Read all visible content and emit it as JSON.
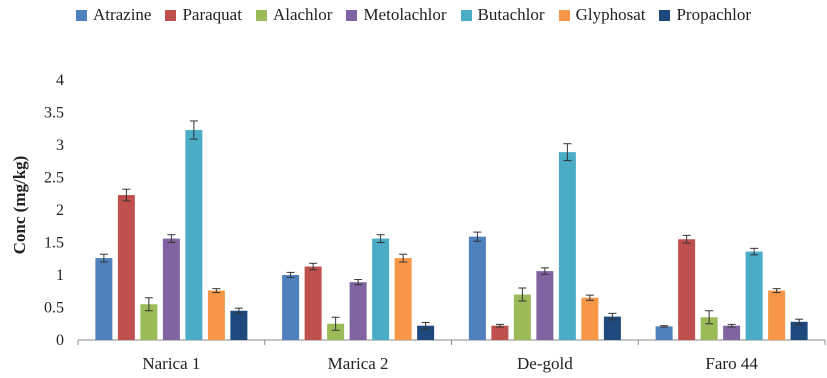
{
  "chart_data": {
    "type": "bar",
    "ylabel": "Conc (mg/kg)",
    "xlabel": "",
    "ylim": [
      0,
      4
    ],
    "yticks": [
      "0",
      "0.5",
      "1",
      "1.5",
      "2",
      "2.5",
      "3",
      "3.5",
      "4"
    ],
    "legend_position": "top",
    "grid": false,
    "error_bars": true,
    "categories": [
      "Narica 1",
      "Marica 2",
      "De-gold",
      "Faro 44"
    ],
    "series": [
      {
        "name": "Atrazine",
        "color": "#4f81bd",
        "values": [
          1.26,
          1.0,
          1.59,
          0.21
        ],
        "errors": [
          0.06,
          0.04,
          0.07,
          0.01
        ]
      },
      {
        "name": "Paraquat",
        "color": "#c0504d",
        "values": [
          2.23,
          1.13,
          0.22,
          1.55
        ],
        "errors": [
          0.09,
          0.05,
          0.02,
          0.06
        ]
      },
      {
        "name": "Alachlor",
        "color": "#9bbb59",
        "values": [
          0.55,
          0.25,
          0.7,
          0.35
        ],
        "errors": [
          0.1,
          0.1,
          0.1,
          0.1
        ]
      },
      {
        "name": "Metolachlor",
        "color": "#8064a2",
        "values": [
          1.56,
          0.89,
          1.06,
          0.22
        ],
        "errors": [
          0.06,
          0.04,
          0.05,
          0.02
        ]
      },
      {
        "name": "Butachlor",
        "color": "#4bacc6",
        "values": [
          3.23,
          1.56,
          2.89,
          1.36
        ],
        "errors": [
          0.14,
          0.06,
          0.13,
          0.05
        ]
      },
      {
        "name": "Glyphosat",
        "color": "#f79646",
        "values": [
          0.76,
          1.26,
          0.65,
          0.76
        ],
        "errors": [
          0.03,
          0.06,
          0.04,
          0.03
        ]
      },
      {
        "name": "Propachlor",
        "color": "#1f497d",
        "values": [
          0.45,
          0.22,
          0.36,
          0.28
        ],
        "errors": [
          0.04,
          0.05,
          0.05,
          0.04
        ]
      }
    ]
  }
}
